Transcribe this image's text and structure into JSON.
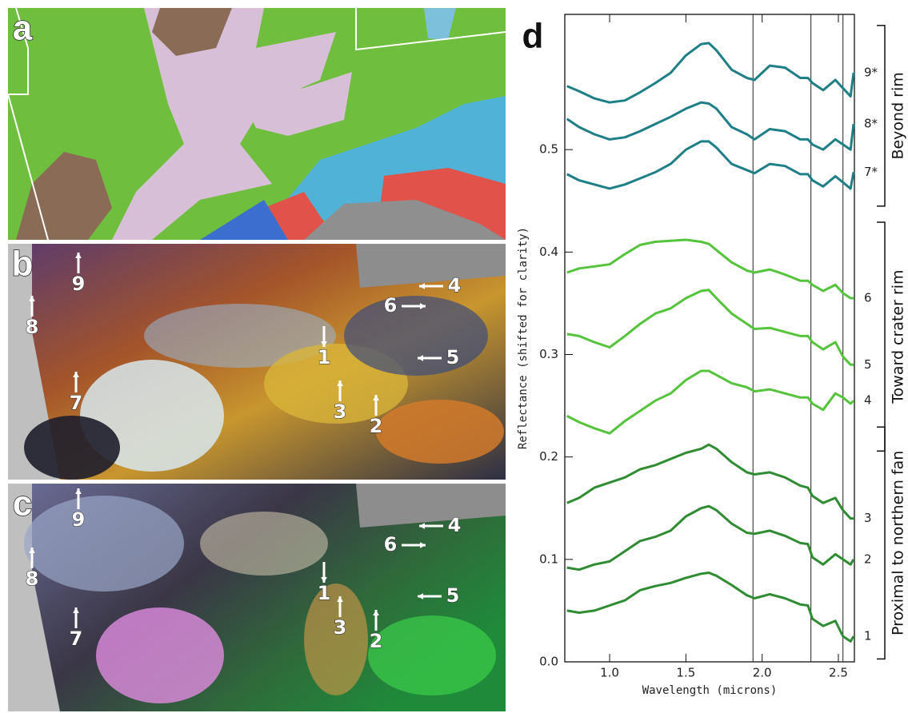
{
  "panels": [
    {
      "letter": "a"
    },
    {
      "letter": "b",
      "arrows": [
        "9",
        "8",
        "7",
        "1",
        "3",
        "2",
        "6",
        "4",
        "5"
      ]
    },
    {
      "letter": "c",
      "arrows": [
        "9",
        "8",
        "7",
        "1",
        "3",
        "2",
        "6",
        "4",
        "5"
      ]
    }
  ],
  "chart_data": {
    "type": "line",
    "panel_letter": "d",
    "xlabel": "Wavelength (microns)",
    "ylabel": "Reflectance (shifted for clarity)",
    "xlim": [
      0.706,
      2.605
    ],
    "ylim": [
      0,
      0.632
    ],
    "xticks": [
      {
        "value": 1,
        "label": "1.0"
      },
      1.5,
      {
        "value": 2,
        "label": "2.0"
      },
      2.5
    ],
    "yticks": [
      {
        "value": 0,
        "label": "0.0"
      },
      0.1,
      0.2,
      0.3,
      0.4,
      0.5
    ],
    "vlines": [
      1.94,
      2.32,
      2.53
    ],
    "x": [
      0.72,
      0.8,
      0.9,
      1.0,
      1.1,
      1.2,
      1.3,
      1.4,
      1.5,
      1.6,
      1.65,
      1.7,
      1.8,
      1.9,
      1.95,
      2.05,
      2.15,
      2.25,
      2.3,
      2.33,
      2.4,
      2.48,
      2.53,
      2.58,
      2.6
    ],
    "groups": [
      {
        "label": "Beyond rim",
        "series": [
          {
            "name": "9*",
            "color": "#1f7f86",
            "values": [
              0.562,
              0.557,
              0.55,
              0.546,
              0.548,
              0.556,
              0.565,
              0.575,
              0.592,
              0.603,
              0.604,
              0.597,
              0.578,
              0.57,
              0.568,
              0.582,
              0.58,
              0.57,
              0.57,
              0.565,
              0.558,
              0.568,
              0.56,
              0.552,
              0.575
            ]
          },
          {
            "name": "8*",
            "color": "#1f7f86",
            "values": [
              0.53,
              0.522,
              0.515,
              0.51,
              0.512,
              0.518,
              0.525,
              0.532,
              0.54,
              0.546,
              0.545,
              0.54,
              0.522,
              0.515,
              0.51,
              0.52,
              0.518,
              0.51,
              0.51,
              0.505,
              0.5,
              0.51,
              0.505,
              0.5,
              0.525
            ]
          },
          {
            "name": "7*",
            "color": "#1f7f86",
            "values": [
              0.476,
              0.47,
              0.466,
              0.462,
              0.466,
              0.472,
              0.478,
              0.486,
              0.5,
              0.508,
              0.508,
              0.502,
              0.486,
              0.48,
              0.477,
              0.486,
              0.484,
              0.476,
              0.476,
              0.47,
              0.464,
              0.474,
              0.468,
              0.462,
              0.478
            ]
          }
        ]
      },
      {
        "label": "Toward crater rim",
        "series": [
          {
            "name": "6",
            "color": "#55c43c",
            "values": [
              0.38,
              0.384,
              0.386,
              0.388,
              0.398,
              0.407,
              0.41,
              0.411,
              0.412,
              0.41,
              0.408,
              0.402,
              0.39,
              0.382,
              0.38,
              0.383,
              0.378,
              0.372,
              0.372,
              0.368,
              0.362,
              0.368,
              0.36,
              0.355,
              0.355
            ]
          },
          {
            "name": "5",
            "color": "#55c43c",
            "values": [
              0.32,
              0.318,
              0.312,
              0.307,
              0.318,
              0.33,
              0.34,
              0.345,
              0.355,
              0.362,
              0.363,
              0.355,
              0.34,
              0.33,
              0.325,
              0.326,
              0.322,
              0.318,
              0.318,
              0.312,
              0.305,
              0.312,
              0.298,
              0.29,
              0.29
            ]
          },
          {
            "name": "4",
            "color": "#55c43c",
            "values": [
              0.24,
              0.234,
              0.228,
              0.223,
              0.235,
              0.245,
              0.255,
              0.262,
              0.275,
              0.284,
              0.284,
              0.28,
              0.272,
              0.268,
              0.264,
              0.266,
              0.262,
              0.258,
              0.258,
              0.252,
              0.246,
              0.262,
              0.258,
              0.252,
              0.255
            ]
          }
        ]
      },
      {
        "label": "Proximal to northern fan",
        "series": [
          {
            "name": "3",
            "color": "#2f8c32",
            "values": [
              0.155,
              0.16,
              0.17,
              0.175,
              0.18,
              0.188,
              0.192,
              0.198,
              0.204,
              0.208,
              0.212,
              0.208,
              0.195,
              0.185,
              0.183,
              0.185,
              0.18,
              0.172,
              0.17,
              0.162,
              0.155,
              0.16,
              0.148,
              0.14,
              0.14
            ]
          },
          {
            "name": "2",
            "color": "#2f8c32",
            "values": [
              0.092,
              0.09,
              0.095,
              0.098,
              0.108,
              0.118,
              0.122,
              0.128,
              0.142,
              0.15,
              0.152,
              0.148,
              0.135,
              0.126,
              0.125,
              0.128,
              0.123,
              0.116,
              0.115,
              0.102,
              0.095,
              0.105,
              0.1,
              0.095,
              0.1
            ]
          },
          {
            "name": "1",
            "color": "#2f8c32",
            "values": [
              0.05,
              0.048,
              0.05,
              0.055,
              0.06,
              0.07,
              0.074,
              0.077,
              0.082,
              0.086,
              0.087,
              0.084,
              0.075,
              0.065,
              0.062,
              0.066,
              0.062,
              0.056,
              0.055,
              0.042,
              0.035,
              0.04,
              0.025,
              0.02,
              0.025
            ]
          }
        ]
      }
    ]
  }
}
